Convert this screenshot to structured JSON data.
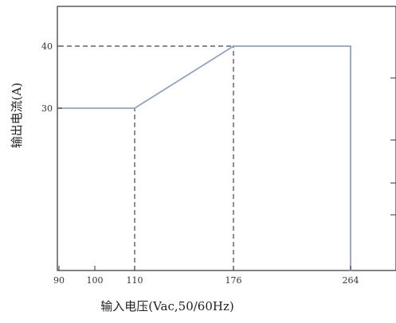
{
  "chart_data": {
    "type": "line",
    "xlabel": "输入电压(Vac,50/60Hz)",
    "ylabel": "输出电流(A)",
    "x_ticks": [
      "90",
      "100",
      "110",
      "176",
      "264"
    ],
    "y_ticks": [
      "30",
      "40"
    ],
    "xlim": [
      90,
      264
    ],
    "ylim": [
      0,
      40
    ],
    "grid": false,
    "series": [
      {
        "x": [
          90,
          110,
          176,
          264,
          264
        ],
        "y": [
          30,
          30,
          40,
          40,
          0
        ]
      }
    ],
    "reference_lines": [
      {
        "from": [
          110,
          0
        ],
        "to": [
          110,
          30
        ]
      },
      {
        "from": [
          176,
          0
        ],
        "to": [
          176,
          40
        ]
      },
      {
        "from": [
          90,
          40
        ],
        "to": [
          176,
          40
        ]
      }
    ],
    "colors": {
      "axis": "#333333",
      "curve": "#8fa3c8",
      "reference": "#444444"
    }
  }
}
